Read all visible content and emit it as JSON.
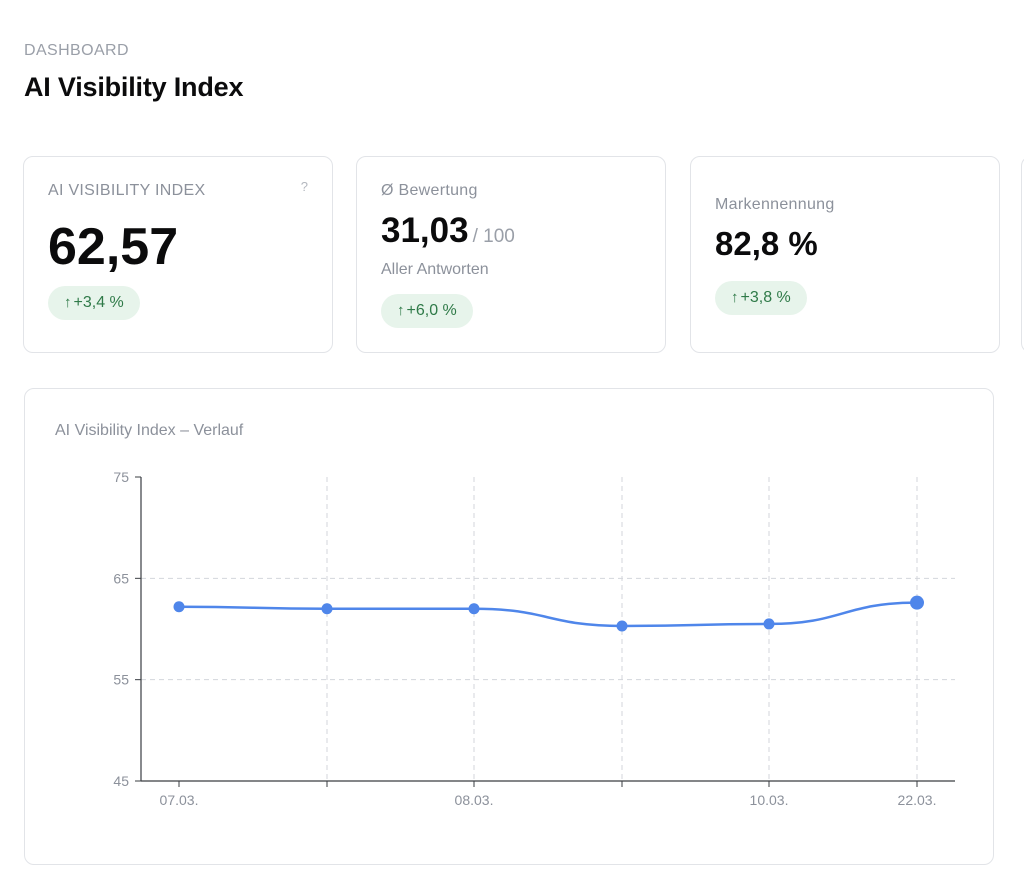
{
  "header": {
    "eyebrow": "DASHBOARD",
    "title": "AI Visibility Index"
  },
  "cards": [
    {
      "label": "AI VISIBILITY INDEX",
      "help": "?",
      "value": "62,57",
      "badge": "+3,4 %"
    },
    {
      "label": "Ø Bewertung",
      "value": "31,03",
      "value_suffix": "/ 100",
      "subtext": "Aller Antworten",
      "badge": "+6,0 %"
    },
    {
      "label": "Markennennung",
      "value": "82,8 %",
      "badge": "+3,8 %"
    }
  ],
  "colors": {
    "line": "#4f86ea",
    "badge_bg": "#e7f4eb",
    "badge_text": "#2f7a48"
  },
  "icons": {
    "trend": "arrow-up-icon",
    "help": "question-icon"
  },
  "chart": {
    "title": "AI Visibility Index – Verlauf"
  },
  "chart_data": {
    "type": "line",
    "title": "AI Visibility Index – Verlauf",
    "ylim": [
      45,
      75
    ],
    "yticks": [
      45,
      55,
      65,
      75
    ],
    "grid": true,
    "x_tick_labels": [
      "07.03.",
      "",
      "08.03.",
      "",
      "10.03.",
      "22.03."
    ],
    "series": [
      {
        "values": [
          62.2,
          62.0,
          62.0,
          60.3,
          60.5,
          62.6
        ]
      }
    ]
  }
}
